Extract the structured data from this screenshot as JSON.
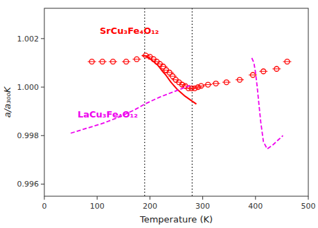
{
  "chart_data": {
    "type": "line",
    "xlabel": "Temperature (K)",
    "ylabel": "a/a₃₀₀K",
    "xlim": [
      0,
      500
    ],
    "ylim": [
      0.9955,
      1.00325
    ],
    "xticks": [
      0,
      100,
      200,
      300,
      400,
      500
    ],
    "yticks": [
      0.996,
      0.998,
      {
        "value": 1.0,
        "label": "1.000"
      },
      1.002
    ],
    "grid": false,
    "vlines": [
      190,
      280
    ],
    "annotations": [
      {
        "text": "SrCu₃Fe₄O₁₂",
        "x": 105,
        "y": 1.0022,
        "color": "#ff0000"
      },
      {
        "text": "LaCu₃Fe₄O₁₂",
        "x": 63,
        "y": 0.99875,
        "color": "#ee00ee"
      }
    ],
    "series": [
      {
        "type": "scatter",
        "color": "#ff0000",
        "marker": "open-circle",
        "x": [
          90,
          110,
          130,
          155,
          175,
          192,
          200,
          207,
          213,
          219,
          225,
          231,
          237,
          243,
          249,
          255,
          261,
          267,
          273,
          279,
          285,
          291,
          297,
          310,
          325,
          345,
          370,
          395,
          415,
          440,
          460
        ],
        "values": [
          1.00105,
          1.00105,
          1.00105,
          1.00105,
          1.00115,
          1.0013,
          1.00125,
          1.00115,
          1.00105,
          1.00095,
          1.00085,
          1.0007,
          1.0006,
          1.00045,
          1.0003,
          1.0002,
          1.0001,
          1.00005,
          0.99995,
          0.99995,
          0.99995,
          1.0,
          1.00005,
          1.0001,
          1.00015,
          1.0002,
          1.0003,
          1.0005,
          1.00065,
          1.00075,
          1.00105
        ]
      },
      {
        "type": "line",
        "color": "#ff0000",
        "line_style": "solid",
        "x": [
          185,
          193,
          200,
          207,
          215,
          222,
          230,
          240,
          252,
          265,
          278,
          288
        ],
        "values": [
          1.0013,
          1.00128,
          1.00118,
          1.00105,
          1.0009,
          1.0007,
          1.0005,
          1.0002,
          0.9999,
          0.99965,
          0.99945,
          0.9993
        ]
      },
      {
        "type": "line",
        "color": "#ee00ee",
        "line_style": "dashed",
        "x": [
          50,
          80,
          110,
          140,
          170,
          190,
          220,
          250,
          280
        ],
        "values": [
          0.9981,
          0.9983,
          0.9985,
          0.99875,
          0.99905,
          0.9993,
          0.9996,
          0.99985,
          1.0001
        ]
      },
      {
        "type": "line",
        "color": "#ee00ee",
        "line_style": "dashed",
        "x": [
          393,
          397,
          400,
          403,
          406,
          410,
          415,
          422,
          432,
          442,
          452
        ],
        "values": [
          1.0012,
          1.001,
          1.0006,
          1.00005,
          0.9994,
          0.99855,
          0.99775,
          0.99745,
          0.9976,
          0.9978,
          0.998
        ]
      }
    ]
  }
}
